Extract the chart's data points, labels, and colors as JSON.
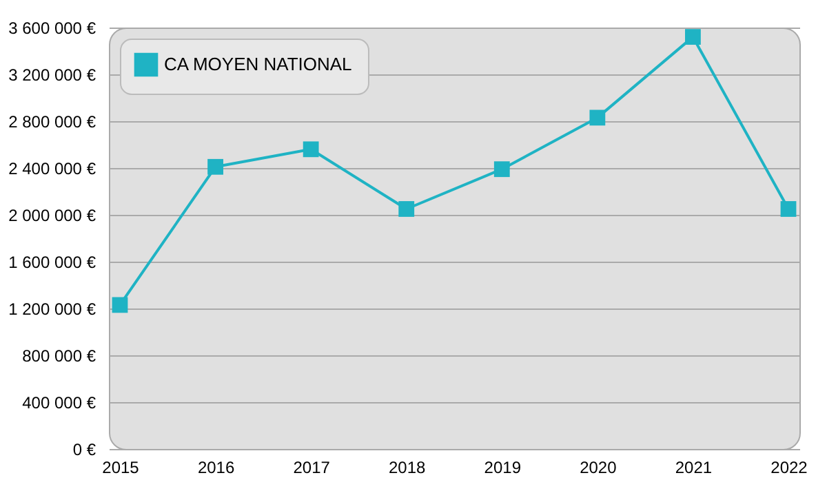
{
  "chart_data": {
    "type": "line",
    "categories": [
      "2015",
      "2016",
      "2017",
      "2018",
      "2019",
      "2020",
      "2021",
      "2022"
    ],
    "series": [
      {
        "name": "CA MOYEN NATIONAL",
        "color": "#1fb3c4",
        "values": [
          1230000,
          2410000,
          2560000,
          2050000,
          2390000,
          2830000,
          3520000,
          2050000
        ]
      }
    ],
    "ylim": [
      0,
      3600000
    ],
    "yticks": [
      {
        "value": 0,
        "label": "0 €"
      },
      {
        "value": 400000,
        "label": "400 000 €"
      },
      {
        "value": 800000,
        "label": "800 000 €"
      },
      {
        "value": 1200000,
        "label": "1 200 000 €"
      },
      {
        "value": 1600000,
        "label": "1 600 000 €"
      },
      {
        "value": 2000000,
        "label": "2 000 000 €"
      },
      {
        "value": 2400000,
        "label": "2 400 000 €"
      },
      {
        "value": 2800000,
        "label": "2 800 000 €"
      },
      {
        "value": 3200000,
        "label": "3 200 000 €"
      },
      {
        "value": 3600000,
        "label": "3 600 000 €"
      }
    ],
    "grid": "y",
    "legend": "top left",
    "marker": "square",
    "line_style": "solid"
  }
}
